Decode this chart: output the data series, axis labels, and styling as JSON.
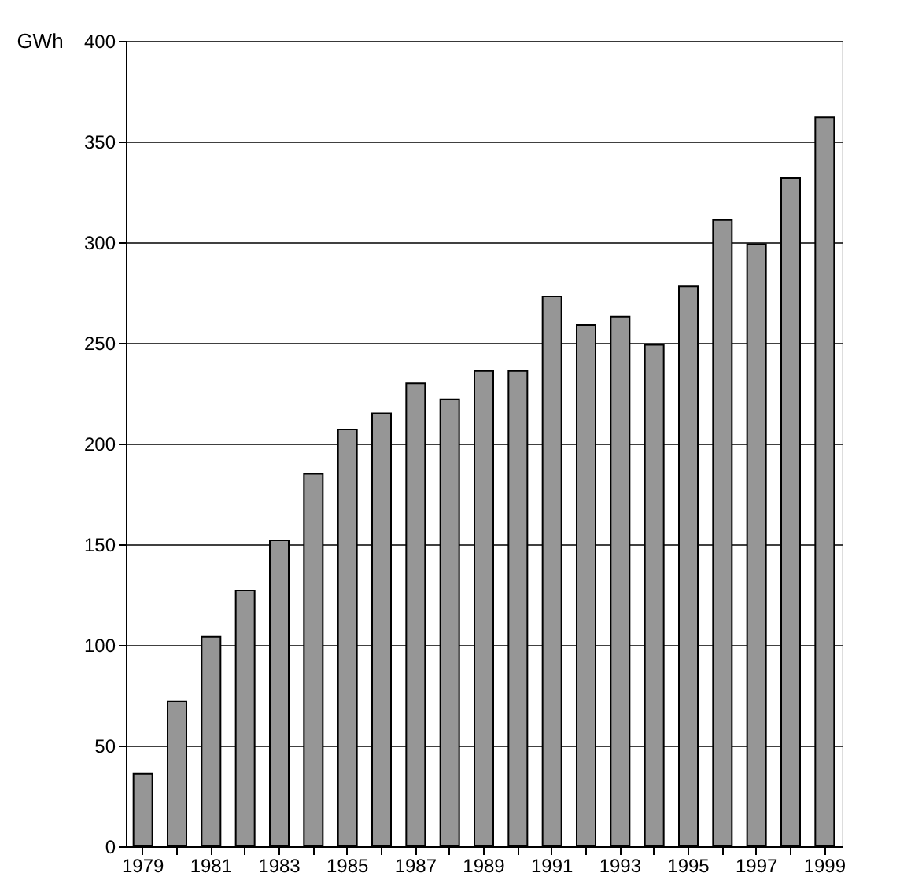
{
  "chart_data": {
    "type": "bar",
    "ylabel": "GWh",
    "categories": [
      "1979",
      null,
      "1981",
      null,
      "1983",
      null,
      "1985",
      null,
      "1987",
      null,
      "1989",
      null,
      "1991",
      null,
      "1993",
      null,
      "1995",
      null,
      "1997",
      null,
      "1999"
    ],
    "values": [
      36,
      72,
      104,
      127,
      152,
      185,
      207,
      215,
      230,
      222,
      236,
      236,
      273,
      259,
      263,
      249,
      278,
      311,
      299,
      332,
      362
    ],
    "color": "#969696",
    "ylim": [
      0,
      400
    ],
    "yticks": [
      0,
      50,
      100,
      150,
      200,
      250,
      300,
      350,
      400
    ],
    "grid": "y"
  }
}
